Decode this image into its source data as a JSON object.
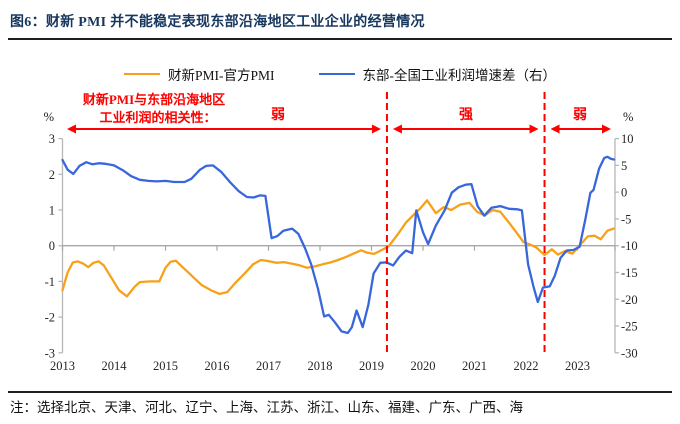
{
  "header": {
    "title": "图6：财新 PMI 并不能稳定表现东部沿海地区工业企业的经营情况"
  },
  "legend": {
    "items": [
      {
        "label": "财新PMI-官方PMI",
        "color": "#F7A11A"
      },
      {
        "label": "东部-全国工业利润增速差（右）",
        "color": "#3866DB"
      }
    ]
  },
  "annotations": {
    "color": "#FE0000",
    "correlation_note_line1": "财新PMI与东部沿海地区",
    "correlation_note_line2": "工业利润的相关性：",
    "segments": [
      {
        "label": "弱"
      },
      {
        "label": "强"
      },
      {
        "label": "弱"
      }
    ]
  },
  "axes": {
    "left": {
      "unit": "%",
      "ticks": [
        3,
        2,
        1,
        0,
        -1,
        -2,
        -3
      ]
    },
    "right": {
      "unit": "%",
      "ticks": [
        10,
        5,
        0,
        -5,
        -10,
        -15,
        -20,
        -25,
        -30
      ]
    },
    "x": {
      "ticks": [
        2013,
        2014,
        2015,
        2016,
        2017,
        2018,
        2019,
        2020,
        2021,
        2022,
        2023
      ]
    }
  },
  "footer": {
    "note": "注：选择北京、天津、河北、辽宁、上海、江苏、浙江、山东、福建、广东、广西、海"
  },
  "chart_data": {
    "type": "line",
    "title": "图6：财新 PMI 并不能稳定表现东部沿海地区工业企业的经营情况",
    "x_range": [
      2013,
      2023.75
    ],
    "left_ylim": [
      -3,
      3
    ],
    "right_ylim": [
      -30,
      10
    ],
    "grid": false,
    "legend_position": "top",
    "dashed_vlines_x": [
      2019.3,
      2022.36
    ],
    "series": [
      {
        "name": "财新PMI-官方PMI",
        "axis": "left",
        "color": "#F7A11A",
        "points": [
          [
            2013.0,
            -1.25
          ],
          [
            2013.1,
            -0.75
          ],
          [
            2013.2,
            -0.47
          ],
          [
            2013.3,
            -0.44
          ],
          [
            2013.4,
            -0.5
          ],
          [
            2013.5,
            -0.6
          ],
          [
            2013.6,
            -0.48
          ],
          [
            2013.7,
            -0.44
          ],
          [
            2013.8,
            -0.55
          ],
          [
            2013.95,
            -0.9
          ],
          [
            2014.1,
            -1.25
          ],
          [
            2014.25,
            -1.42
          ],
          [
            2014.4,
            -1.15
          ],
          [
            2014.5,
            -1.02
          ],
          [
            2014.7,
            -1.0
          ],
          [
            2014.88,
            -1.0
          ],
          [
            2015.0,
            -0.62
          ],
          [
            2015.1,
            -0.45
          ],
          [
            2015.2,
            -0.42
          ],
          [
            2015.33,
            -0.6
          ],
          [
            2015.5,
            -0.83
          ],
          [
            2015.7,
            -1.1
          ],
          [
            2015.9,
            -1.26
          ],
          [
            2016.05,
            -1.35
          ],
          [
            2016.2,
            -1.3
          ],
          [
            2016.35,
            -1.05
          ],
          [
            2016.55,
            -0.76
          ],
          [
            2016.7,
            -0.52
          ],
          [
            2016.85,
            -0.4
          ],
          [
            2017.0,
            -0.43
          ],
          [
            2017.15,
            -0.48
          ],
          [
            2017.3,
            -0.46
          ],
          [
            2017.45,
            -0.5
          ],
          [
            2017.6,
            -0.55
          ],
          [
            2017.75,
            -0.62
          ],
          [
            2017.9,
            -0.58
          ],
          [
            2018.05,
            -0.52
          ],
          [
            2018.2,
            -0.47
          ],
          [
            2018.35,
            -0.4
          ],
          [
            2018.5,
            -0.32
          ],
          [
            2018.65,
            -0.22
          ],
          [
            2018.8,
            -0.13
          ],
          [
            2018.92,
            -0.2
          ],
          [
            2019.05,
            -0.23
          ],
          [
            2019.2,
            -0.12
          ],
          [
            2019.33,
            -0.02
          ],
          [
            2019.5,
            0.3
          ],
          [
            2019.67,
            0.65
          ],
          [
            2019.83,
            0.88
          ],
          [
            2019.95,
            1.05
          ],
          [
            2020.08,
            1.27
          ],
          [
            2020.25,
            0.91
          ],
          [
            2020.4,
            1.08
          ],
          [
            2020.55,
            1.0
          ],
          [
            2020.72,
            1.15
          ],
          [
            2020.9,
            1.2
          ],
          [
            2021.05,
            0.95
          ],
          [
            2021.2,
            0.85
          ],
          [
            2021.35,
            1.0
          ],
          [
            2021.5,
            0.95
          ],
          [
            2021.65,
            0.68
          ],
          [
            2021.8,
            0.4
          ],
          [
            2021.95,
            0.1
          ],
          [
            2022.08,
            0.03
          ],
          [
            2022.2,
            -0.05
          ],
          [
            2022.36,
            -0.26
          ],
          [
            2022.5,
            -0.1
          ],
          [
            2022.62,
            -0.25
          ],
          [
            2022.75,
            -0.15
          ],
          [
            2022.9,
            -0.22
          ],
          [
            2023.05,
            0.02
          ],
          [
            2023.2,
            0.26
          ],
          [
            2023.33,
            0.28
          ],
          [
            2023.45,
            0.18
          ],
          [
            2023.58,
            0.42
          ],
          [
            2023.7,
            0.48
          ]
        ]
      },
      {
        "name": "东部-全国工业利润增速差（右）",
        "axis": "right",
        "color": "#3866DB",
        "points": [
          [
            2013.0,
            6.0
          ],
          [
            2013.1,
            4.2
          ],
          [
            2013.21,
            3.4
          ],
          [
            2013.33,
            4.9
          ],
          [
            2013.46,
            5.6
          ],
          [
            2013.58,
            5.2
          ],
          [
            2013.71,
            5.4
          ],
          [
            2013.83,
            5.3
          ],
          [
            2014.0,
            5.0
          ],
          [
            2014.17,
            4.1
          ],
          [
            2014.33,
            3.0
          ],
          [
            2014.5,
            2.3
          ],
          [
            2014.67,
            2.1
          ],
          [
            2014.83,
            2.0
          ],
          [
            2015.0,
            2.1
          ],
          [
            2015.17,
            1.9
          ],
          [
            2015.37,
            1.9
          ],
          [
            2015.5,
            2.5
          ],
          [
            2015.67,
            4.2
          ],
          [
            2015.79,
            4.9
          ],
          [
            2015.92,
            5.0
          ],
          [
            2016.08,
            3.8
          ],
          [
            2016.25,
            1.9
          ],
          [
            2016.42,
            0.2
          ],
          [
            2016.58,
            -0.9
          ],
          [
            2016.71,
            -1.0
          ],
          [
            2016.83,
            -0.6
          ],
          [
            2016.94,
            -0.7
          ],
          [
            2017.06,
            -8.6
          ],
          [
            2017.17,
            -8.2
          ],
          [
            2017.29,
            -7.2
          ],
          [
            2017.46,
            -6.8
          ],
          [
            2017.58,
            -7.8
          ],
          [
            2017.71,
            -10.5
          ],
          [
            2017.83,
            -13.5
          ],
          [
            2017.96,
            -18.0
          ],
          [
            2018.08,
            -23.2
          ],
          [
            2018.17,
            -22.9
          ],
          [
            2018.29,
            -24.3
          ],
          [
            2018.42,
            -26.0
          ],
          [
            2018.54,
            -26.3
          ],
          [
            2018.62,
            -25.2
          ],
          [
            2018.71,
            -22.1
          ],
          [
            2018.83,
            -25.2
          ],
          [
            2018.94,
            -21.0
          ],
          [
            2019.04,
            -15.2
          ],
          [
            2019.17,
            -13.2
          ],
          [
            2019.29,
            -13.1
          ],
          [
            2019.42,
            -13.7
          ],
          [
            2019.54,
            -12.1
          ],
          [
            2019.67,
            -10.9
          ],
          [
            2019.79,
            -11.4
          ],
          [
            2019.87,
            -3.4
          ],
          [
            2020.0,
            -7.5
          ],
          [
            2020.1,
            -9.7
          ],
          [
            2020.25,
            -6.2
          ],
          [
            2020.42,
            -3.4
          ],
          [
            2020.56,
            -0.1
          ],
          [
            2020.69,
            0.9
          ],
          [
            2020.83,
            1.4
          ],
          [
            2020.94,
            1.5
          ],
          [
            2021.06,
            -2.6
          ],
          [
            2021.19,
            -4.4
          ],
          [
            2021.33,
            -2.9
          ],
          [
            2021.5,
            -2.6
          ],
          [
            2021.67,
            -3.1
          ],
          [
            2021.83,
            -3.2
          ],
          [
            2021.92,
            -3.4
          ],
          [
            2022.04,
            -13.5
          ],
          [
            2022.15,
            -17.8
          ],
          [
            2022.23,
            -20.5
          ],
          [
            2022.33,
            -17.8
          ],
          [
            2022.46,
            -17.6
          ],
          [
            2022.56,
            -15.6
          ],
          [
            2022.67,
            -12.3
          ],
          [
            2022.79,
            -10.9
          ],
          [
            2022.92,
            -10.8
          ],
          [
            2023.04,
            -10.2
          ],
          [
            2023.15,
            -5.2
          ],
          [
            2023.25,
            -0.1
          ],
          [
            2023.31,
            0.4
          ],
          [
            2023.42,
            4.4
          ],
          [
            2023.52,
            6.4
          ],
          [
            2023.58,
            6.6
          ],
          [
            2023.65,
            6.2
          ],
          [
            2023.71,
            6.1
          ]
        ]
      }
    ]
  }
}
